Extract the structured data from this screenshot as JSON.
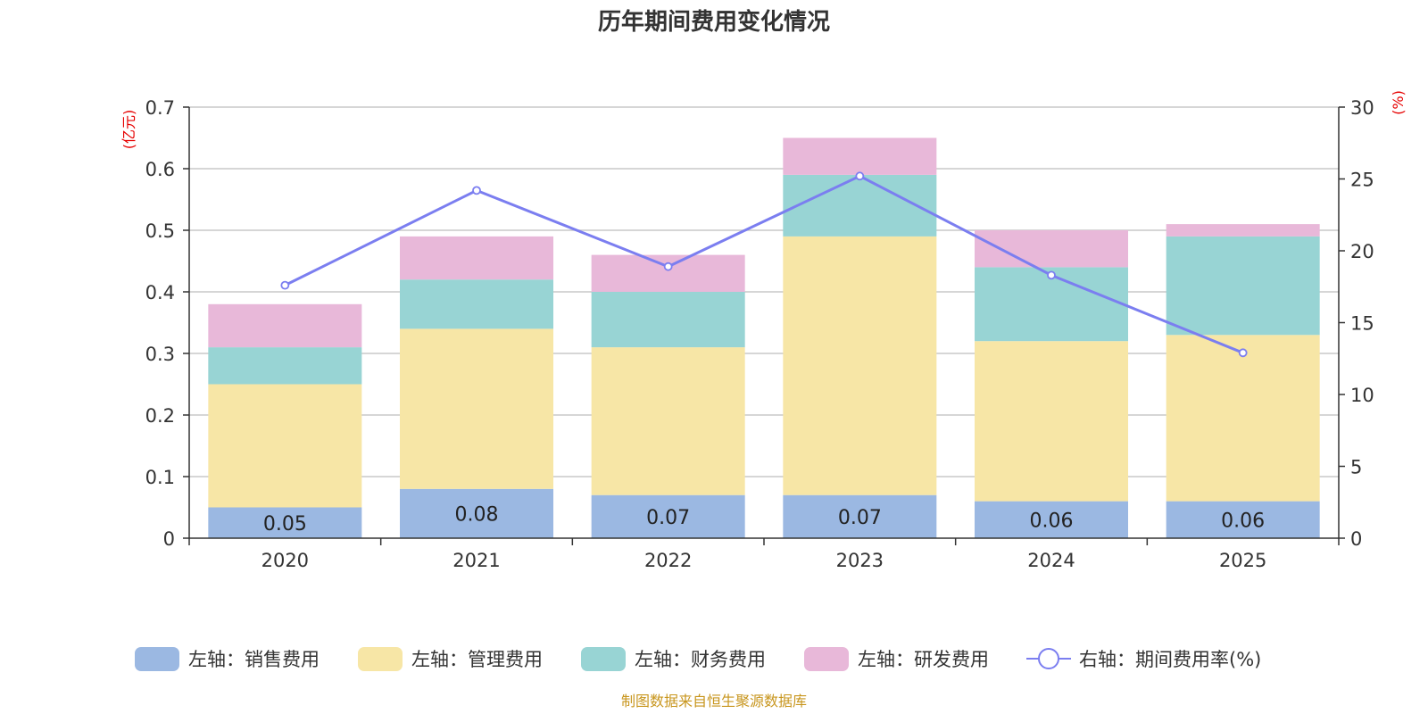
{
  "chart_data": {
    "type": "bar",
    "title": "历年期间费用变化情况",
    "categories": [
      "2020",
      "2021",
      "2022",
      "2023",
      "2024",
      "2025"
    ],
    "left_axis": {
      "unit": "(亿元)",
      "ylim": [
        0,
        0.7
      ],
      "ticks": [
        "0",
        "0.1",
        "0.2",
        "0.3",
        "0.4",
        "0.5",
        "0.6",
        "0.7"
      ]
    },
    "right_axis": {
      "unit": "(%)",
      "ylim": [
        0,
        30
      ],
      "ticks": [
        "0",
        "5",
        "10",
        "15",
        "20",
        "25",
        "30"
      ]
    },
    "series": [
      {
        "name": "左轴：销售费用",
        "kind": "bar",
        "axis": "left",
        "color": "#9bb8e2",
        "values": [
          0.05,
          0.08,
          0.07,
          0.07,
          0.06,
          0.06
        ],
        "labels": [
          "0.05",
          "0.08",
          "0.07",
          "0.07",
          "0.06",
          "0.06"
        ]
      },
      {
        "name": "左轴：管理费用",
        "kind": "bar",
        "axis": "left",
        "color": "#f7e6a6",
        "values": [
          0.2,
          0.26,
          0.24,
          0.42,
          0.26,
          0.27
        ]
      },
      {
        "name": "左轴：财务费用",
        "kind": "bar",
        "axis": "left",
        "color": "#98d4d4",
        "values": [
          0.06,
          0.08,
          0.09,
          0.1,
          0.12,
          0.16
        ]
      },
      {
        "name": "左轴：研发费用",
        "kind": "bar",
        "axis": "left",
        "color": "#e8b8d9",
        "values": [
          0.07,
          0.07,
          0.06,
          0.06,
          0.06,
          0.02
        ]
      },
      {
        "name": "右轴：期间费用率(%)",
        "kind": "line",
        "axis": "right",
        "color": "#7b7ef0",
        "values": [
          17.6,
          24.2,
          18.9,
          25.2,
          18.3,
          12.9
        ]
      }
    ],
    "grid": true,
    "legend_position": "bottom"
  },
  "source": "制图数据来自恒生聚源数据库"
}
